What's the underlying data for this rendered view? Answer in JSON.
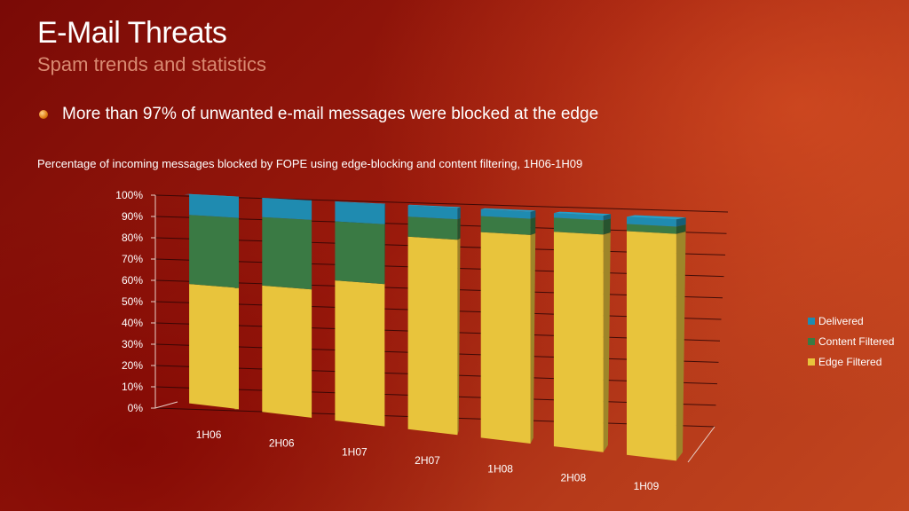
{
  "slide": {
    "title": "E-Mail Threats",
    "subtitle": "Spam trends and statistics",
    "bullet": "More than 97% of unwanted e-mail messages were blocked at the edge",
    "caption": "Percentage of incoming messages blocked by FOPE using edge-blocking and content filtering, 1H06-1H09"
  },
  "chart_data": {
    "type": "bar",
    "stacked": true,
    "three_d": true,
    "categories": [
      "1H06",
      "2H06",
      "1H07",
      "2H07",
      "1H08",
      "2H08",
      "1H09"
    ],
    "series": [
      {
        "name": "Edge Filtered",
        "color": "#e8c43c",
        "values": [
          57,
          59,
          64,
          86,
          90,
          92,
          94
        ]
      },
      {
        "name": "Content Filtered",
        "color": "#3a7a44",
        "values": [
          33,
          32,
          27,
          9,
          7,
          6,
          3
        ]
      },
      {
        "name": "Delivered",
        "color": "#1f8bb0",
        "values": [
          10,
          9,
          9,
          5,
          3,
          2,
          3
        ]
      }
    ],
    "y_ticks": [
      "0%",
      "10%",
      "20%",
      "30%",
      "40%",
      "50%",
      "60%",
      "70%",
      "80%",
      "90%",
      "100%"
    ],
    "ylim": [
      0,
      100
    ],
    "legend_order": [
      "Delivered",
      "Content Filtered",
      "Edge Filtered"
    ],
    "legend_position": "right",
    "grid": true
  }
}
